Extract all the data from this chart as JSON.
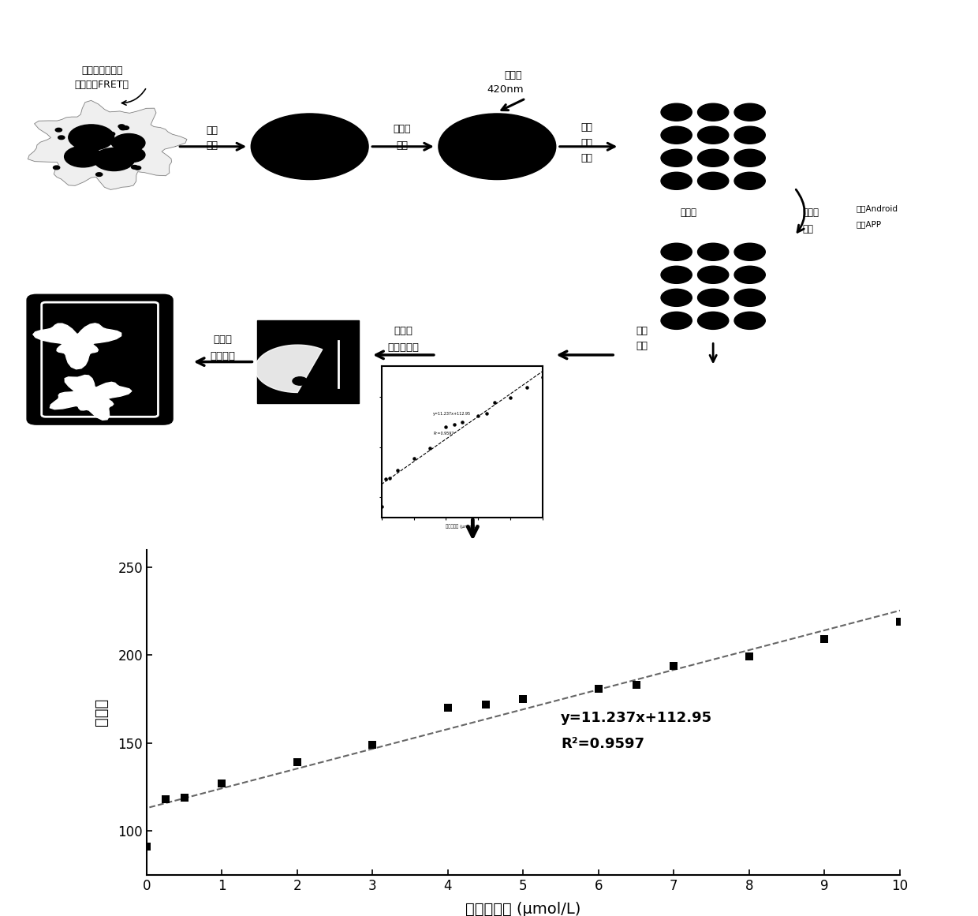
{
  "scatter_x": [
    0.0,
    0.25,
    0.5,
    1.0,
    2.0,
    3.0,
    4.0,
    4.5,
    5.0,
    6.0,
    6.5,
    7.0,
    8.0,
    9.0,
    10.0
  ],
  "scatter_y": [
    91,
    118,
    119,
    127,
    139,
    149,
    170,
    172,
    175,
    181,
    183,
    194,
    199,
    209,
    219
  ],
  "fit_slope": 11.237,
  "fit_intercept": 112.95,
  "r_squared": 0.9597,
  "xlabel": "精氨酸含量 (μmol/L)",
  "ylabel": "灰度值",
  "equation_text": "y=11.237x+112.95",
  "r2_text": "R²=0.9597",
  "xlim": [
    0,
    10
  ],
  "ylim": [
    75,
    260
  ],
  "xticks": [
    0,
    1,
    2,
    3,
    4,
    5,
    6,
    7,
    8,
    9,
    10
  ],
  "yticks": [
    100,
    150,
    200,
    250
  ],
  "marker_color": "#000000",
  "line_color": "#666666",
  "bg_color": "#ffffff",
  "eq_x": 5.5,
  "eq_y": 162,
  "marker_size": 55,
  "label_fret1": "荧光共振能量转",
  "label_fret2": "移效应（FRET）",
  "label_step1a": "浸润",
  "label_step1b": "风干",
  "label_step2a": "精氨酸",
  "label_step2b": "点样",
  "label_exc1": "激发光",
  "label_exc2": "420nm",
  "label_step3a": "拍照",
  "label_step3b": "分割",
  "label_step3c": "样点",
  "label_gray1": "灰度化",
  "label_gray2": "提取灰",
  "label_gray3": "度值",
  "label_android1": "基于Android",
  "label_android2": "开发APP",
  "label_data1": "数据",
  "label_data2": "拟合",
  "label_detect1": "样品中",
  "label_detect2": "精氨酸检测",
  "label_display1": "精氨酸",
  "label_display2": "含量显示"
}
